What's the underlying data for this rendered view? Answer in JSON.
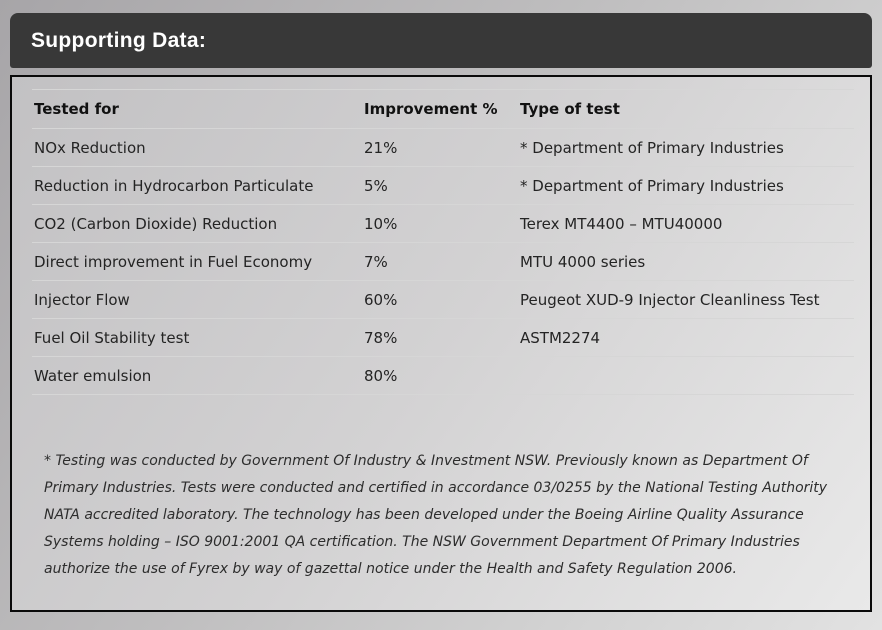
{
  "header": {
    "title": "Supporting Data:"
  },
  "table": {
    "columns": [
      "Tested for",
      "Improvement %",
      "Type of test"
    ],
    "rows": [
      {
        "tested_for": "NOx Reduction",
        "improvement": "21%",
        "type": "* Department of Primary Industries"
      },
      {
        "tested_for": "Reduction in Hydrocarbon Particulate",
        "improvement": "5%",
        "type": "* Department of Primary Industries"
      },
      {
        "tested_for": "CO2 (Carbon Dioxide) Reduction",
        "improvement": "10%",
        "type": "Terex MT4400 – MTU40000"
      },
      {
        "tested_for": "Direct improvement in Fuel Economy",
        "improvement": "7%",
        "type": "MTU 4000 series"
      },
      {
        "tested_for": "Injector Flow",
        "improvement": "60%",
        "type": "Peugeot XUD-9 Injector Cleanliness Test"
      },
      {
        "tested_for": "Fuel Oil Stability test",
        "improvement": "78%",
        "type": "ASTM2274"
      },
      {
        "tested_for": "Water emulsion",
        "improvement": "80%",
        "type": ""
      }
    ]
  },
  "footnote": {
    "text": "* Testing was conducted by Government Of Industry & Investment NSW. Previously known as Department Of Primary Industries. Tests were conducted and certified in accordance 03/0255 by the National Testing Authority NATA accredited laboratory. The technology has been developed under the Boeing Airline Quality Assurance Systems holding – ISO 9001:2001 QA certification. The NSW Government Department Of Primary Industries authorize the use of Fyrex by way of gazettal notice under the Health and Safety Regulation 2006."
  },
  "colors": {
    "header_bar": "#383838",
    "card_border": "#0a0a0a",
    "divider": "#d6d6d6"
  }
}
